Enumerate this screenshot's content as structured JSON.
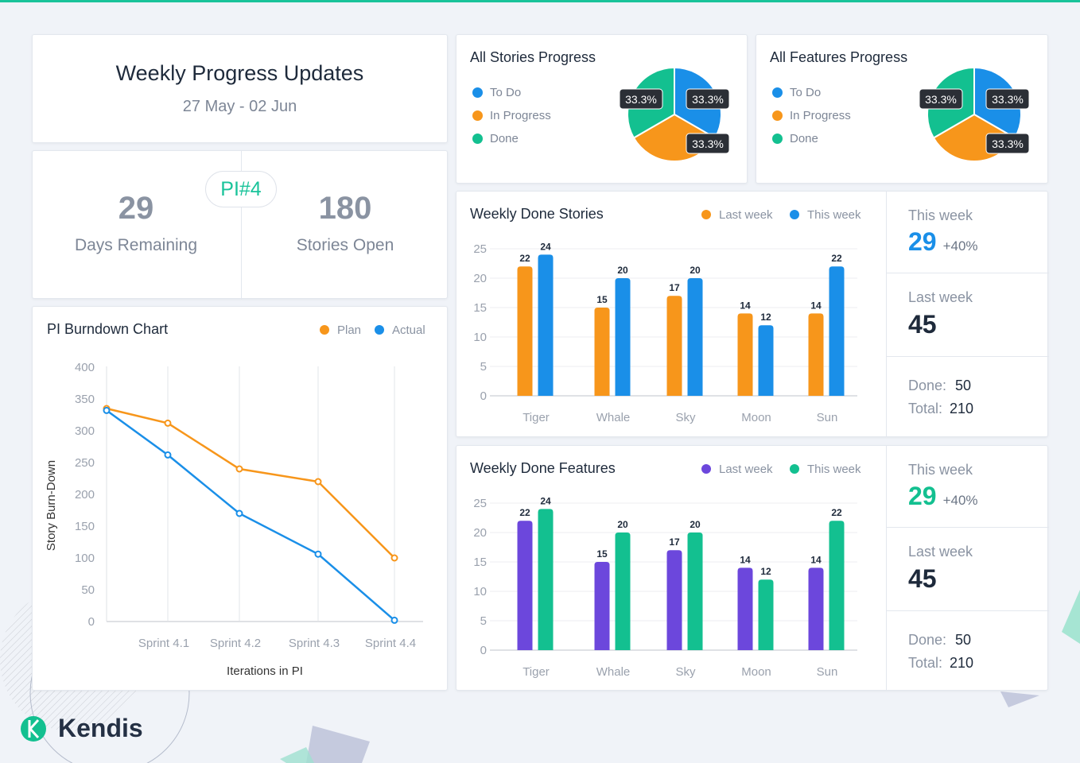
{
  "header": {
    "title": "Weekly Progress Updates",
    "date_range": "27 May - 02 Jun"
  },
  "pi": {
    "badge": "PI#4",
    "days_value": "29",
    "days_label": "Days Remaining",
    "stories_value": "180",
    "stories_label": "Stories Open"
  },
  "colors": {
    "blue": "#1a8fe8",
    "orange": "#f7961b",
    "teal": "#13c090",
    "purple": "#6c47dc",
    "accent": "#19c39a"
  },
  "stories_progress": {
    "title": "All Stories Progress",
    "legend": [
      "To Do",
      "In Progress",
      "Done"
    ],
    "slices": [
      {
        "label": "33.3%",
        "value": 33.3
      },
      {
        "label": "33.3%",
        "value": 33.3
      },
      {
        "label": "33.3%",
        "value": 33.3
      }
    ]
  },
  "features_progress": {
    "title": "All Features Progress",
    "legend": [
      "To Do",
      "In Progress",
      "Done"
    ],
    "slices": [
      {
        "label": "33.3%",
        "value": 33.3
      },
      {
        "label": "33.3%",
        "value": 33.3
      },
      {
        "label": "33.3%",
        "value": 33.3
      }
    ]
  },
  "chart_data": [
    {
      "type": "line",
      "title": "PI Burndown Chart",
      "xlabel": "Iterations in PI",
      "ylabel": "Story Burn-Down",
      "ylim": [
        0,
        400
      ],
      "yticks": [
        "0",
        "50",
        "100",
        "150",
        "200",
        "250",
        "300",
        "350",
        "400"
      ],
      "categories": [
        "",
        "Sprint 4.1",
        "Sprint 4.2",
        "Sprint 4.3",
        "Sprint 4.4"
      ],
      "legend_position": "top-right",
      "series": [
        {
          "name": "Plan",
          "values": [
            335,
            312,
            240,
            220,
            100
          ]
        },
        {
          "name": "Actual",
          "values": [
            332,
            262,
            170,
            106,
            2
          ]
        }
      ]
    },
    {
      "type": "bar",
      "title": "Weekly Done Stories",
      "ylim": [
        0,
        25
      ],
      "yticks": [
        "0",
        "5",
        "10",
        "15",
        "20",
        "25"
      ],
      "categories": [
        "Tiger",
        "Whale",
        "Sky",
        "Moon",
        "Sun"
      ],
      "legend_position": "top-right",
      "series": [
        {
          "name": "Last week",
          "values": [
            22,
            15,
            17,
            14,
            14
          ]
        },
        {
          "name": "This week",
          "values": [
            24,
            20,
            20,
            12,
            22
          ]
        }
      ]
    },
    {
      "type": "bar",
      "title": "Weekly Done Features",
      "ylim": [
        0,
        25
      ],
      "yticks": [
        "0",
        "5",
        "10",
        "15",
        "20",
        "25"
      ],
      "categories": [
        "Tiger",
        "Whale",
        "Sky",
        "Moon",
        "Sun"
      ],
      "legend_position": "top-right",
      "series": [
        {
          "name": "Last week",
          "values": [
            22,
            15,
            17,
            14,
            14
          ]
        },
        {
          "name": "This week",
          "values": [
            24,
            20,
            20,
            12,
            22
          ]
        }
      ]
    }
  ],
  "stories_stats": {
    "this_week_label": "This week",
    "this_week_value": "29",
    "this_week_change": "+40%",
    "last_week_label": "Last week",
    "last_week_value": "45",
    "done_label": "Done:",
    "done_value": "50",
    "total_label": "Total:",
    "total_value": "210"
  },
  "features_stats": {
    "this_week_label": "This week",
    "this_week_value": "29",
    "this_week_change": "+40%",
    "last_week_label": "Last week",
    "last_week_value": "45",
    "done_label": "Done:",
    "done_value": "50",
    "total_label": "Total:",
    "total_value": "210"
  },
  "brand": {
    "name": "Kendis"
  }
}
